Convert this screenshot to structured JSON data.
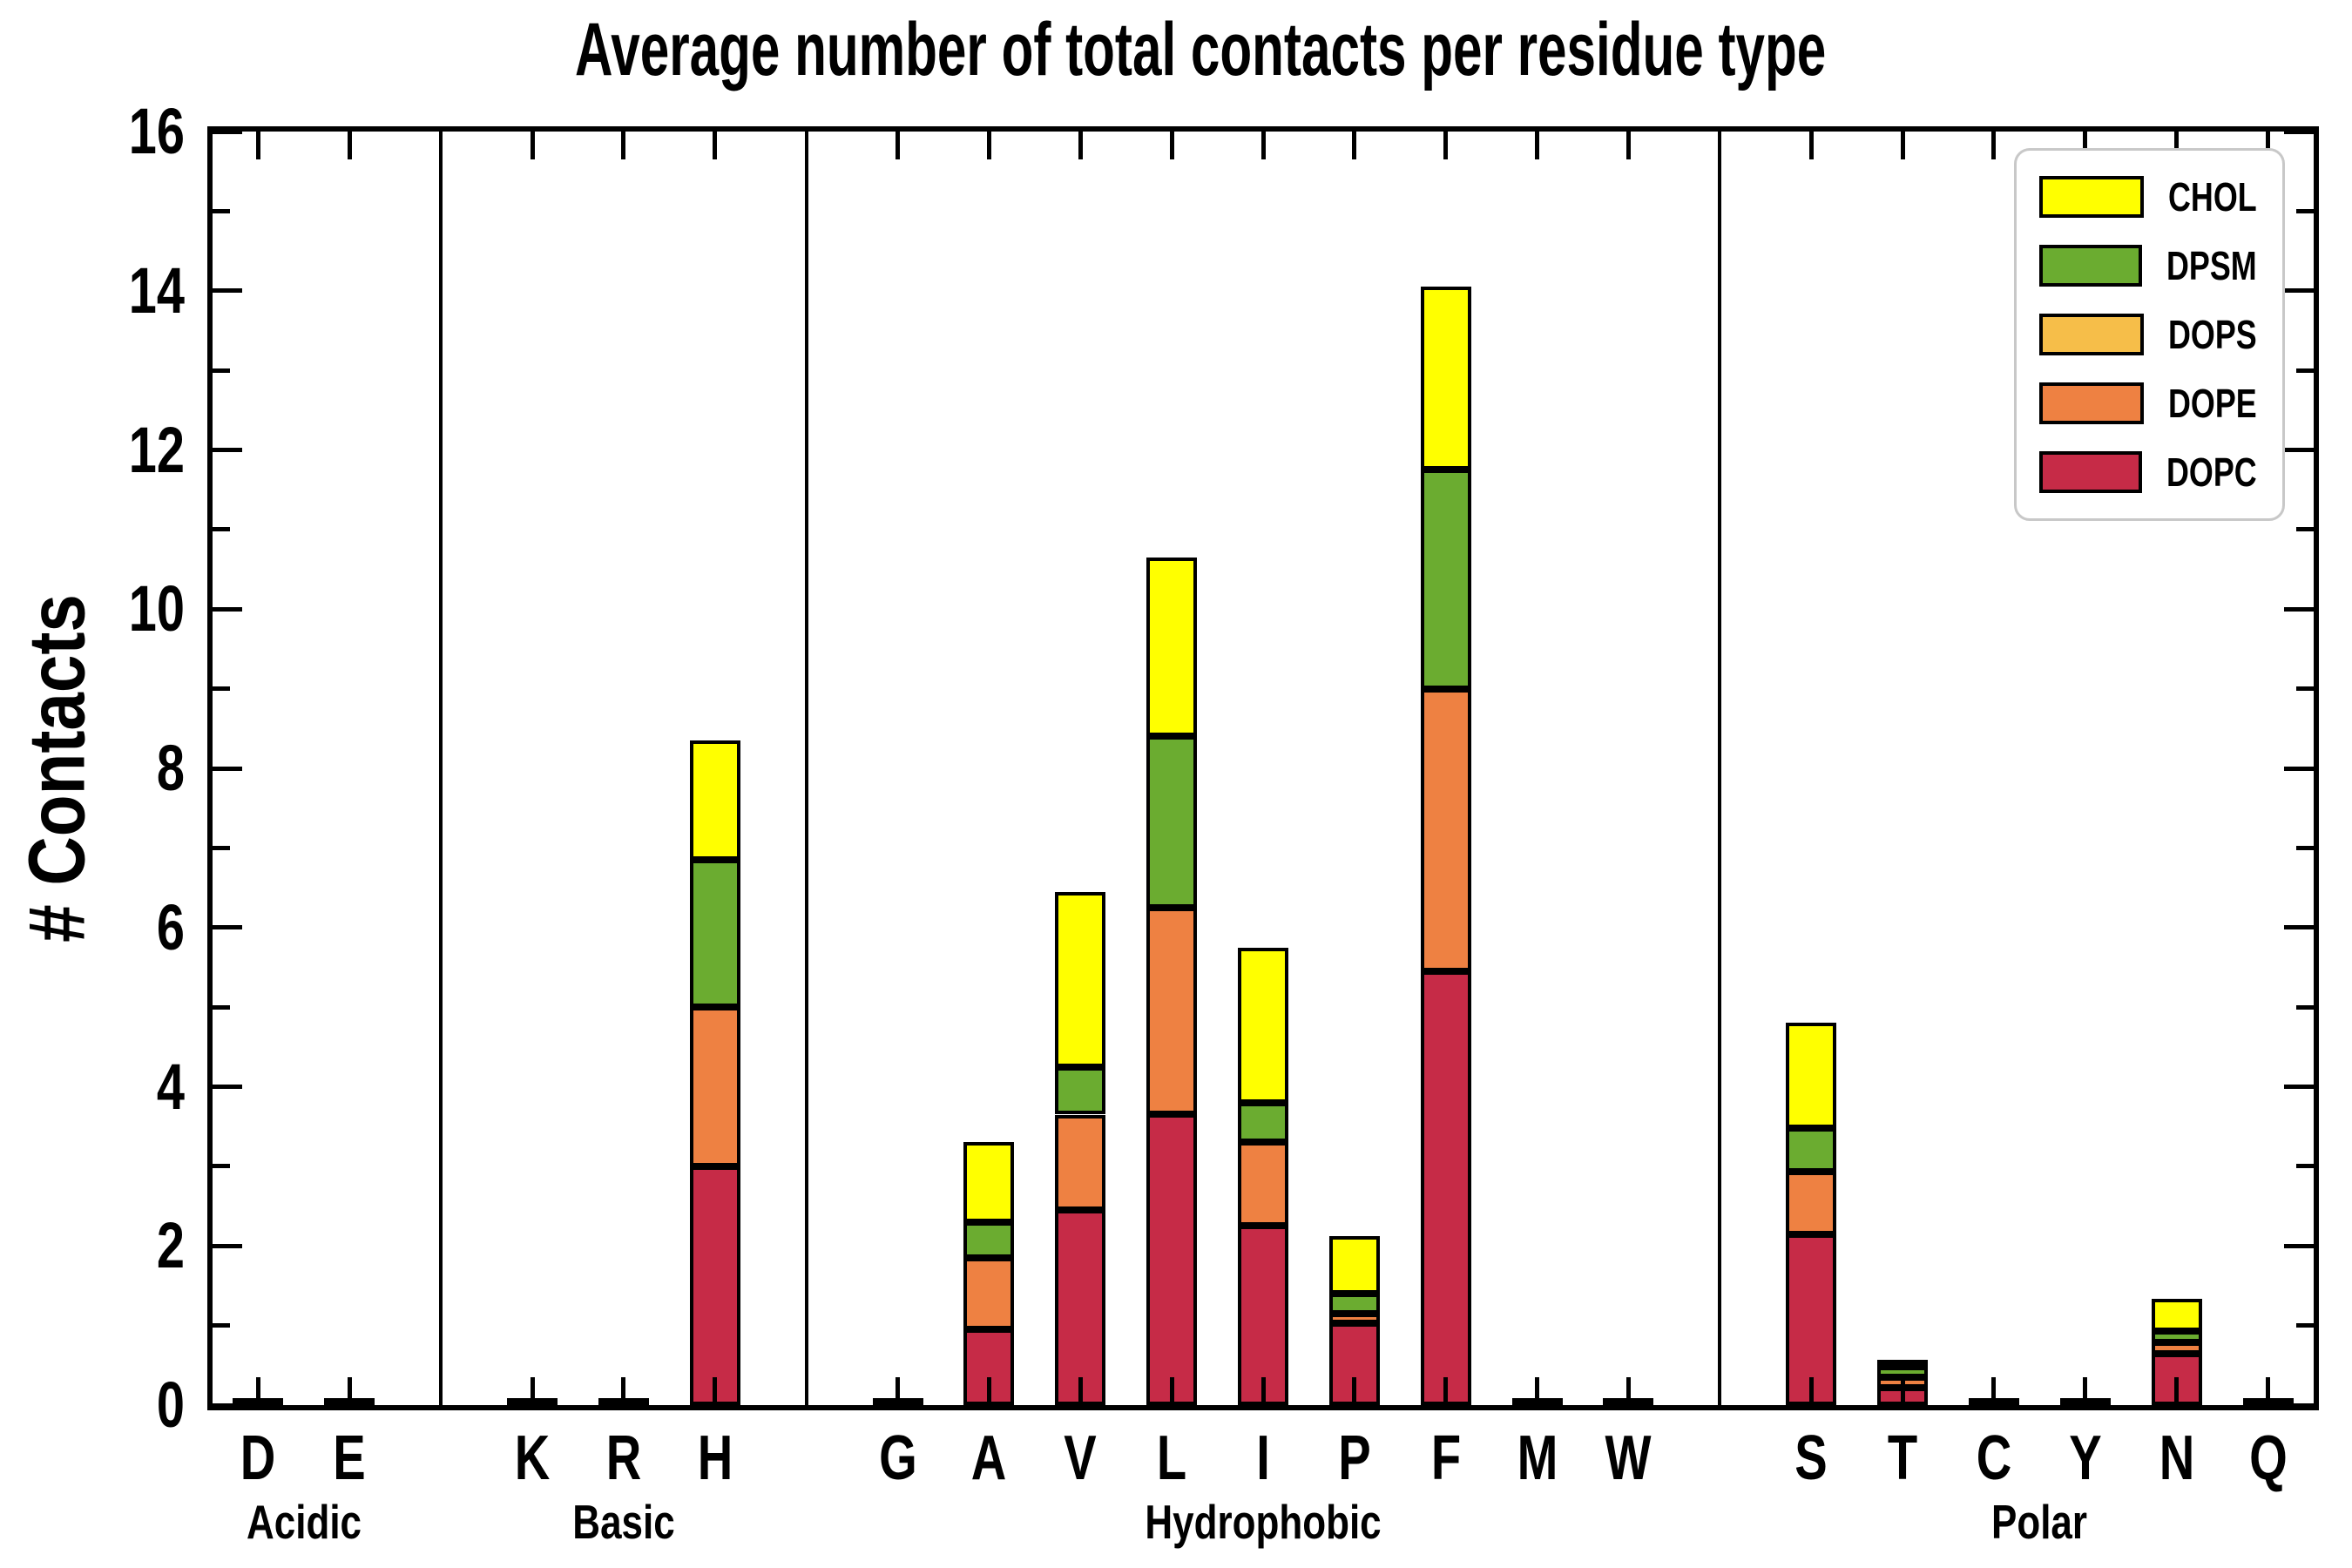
{
  "title": "Average number of total contacts per residue type",
  "ylabel": "# Contacts",
  "colors": {
    "CHOL": "#FFFF00",
    "DPSM": "#6BAC30",
    "DOPS": "#F6BE49",
    "DOPE": "#EE8142",
    "DOPC": "#C62B47",
    "axis": "#000000",
    "legend_border": "#C8C8C8"
  },
  "legend": {
    "position": "upper right",
    "items": [
      {
        "label": "CHOL",
        "color": "#FFFF00"
      },
      {
        "label": "DPSM",
        "color": "#6BAC30"
      },
      {
        "label": "DOPS",
        "color": "#F6BE49"
      },
      {
        "label": "DOPE",
        "color": "#EE8142"
      },
      {
        "label": "DOPC",
        "color": "#C62B47"
      }
    ]
  },
  "chart_data": {
    "type": "bar",
    "stacked": true,
    "title": "Average number of total contacts per residue type",
    "xlabel": "",
    "ylabel": "# Contacts",
    "ylim": [
      0,
      16
    ],
    "yticks_major": [
      0,
      2,
      4,
      6,
      8,
      10,
      12,
      14,
      16
    ],
    "yticks_minor_step": 1,
    "grid": false,
    "legend_position": "upper right",
    "categories": [
      "D",
      "E",
      "K",
      "R",
      "H",
      "G",
      "A",
      "V",
      "L",
      "I",
      "P",
      "F",
      "M",
      "W",
      "S",
      "T",
      "C",
      "Y",
      "N",
      "Q"
    ],
    "groups": [
      {
        "label": "Acidic",
        "residues": [
          "D",
          "E"
        ]
      },
      {
        "label": "Basic",
        "residues": [
          "K",
          "R",
          "H"
        ]
      },
      {
        "label": "Hydrophobic",
        "residues": [
          "G",
          "A",
          "V",
          "L",
          "I",
          "P",
          "F",
          "M",
          "W"
        ]
      },
      {
        "label": "Polar",
        "residues": [
          "S",
          "T",
          "C",
          "Y",
          "N",
          "Q"
        ]
      }
    ],
    "stack_order_bottom_to_top": [
      "DOPC",
      "DOPE",
      "DOPS",
      "DPSM",
      "CHOL"
    ],
    "series": [
      {
        "name": "DOPC",
        "color": "#C62B47",
        "values": [
          0.02,
          0.02,
          0.03,
          0.03,
          3.0,
          0.02,
          0.95,
          2.45,
          3.65,
          2.25,
          1.03,
          5.45,
          0.02,
          0.02,
          2.15,
          0.22,
          0.02,
          0.02,
          0.65,
          0.02
        ]
      },
      {
        "name": "DOPE",
        "color": "#EE8142",
        "values": [
          0,
          0,
          0,
          0,
          2.0,
          0,
          0.9,
          1.2,
          2.6,
          1.05,
          0.12,
          3.55,
          0,
          0,
          0.78,
          0.13,
          0,
          0,
          0.14,
          0
        ]
      },
      {
        "name": "DOPS",
        "color": "#F6BE49",
        "values": [
          0,
          0,
          0,
          0,
          0,
          0,
          0,
          0,
          0,
          0,
          0,
          0,
          0,
          0,
          0,
          0,
          0,
          0,
          0,
          0
        ]
      },
      {
        "name": "DPSM",
        "color": "#6BAC30",
        "values": [
          0,
          0,
          0,
          0,
          1.85,
          0,
          0.45,
          0.6,
          2.15,
          0.5,
          0.25,
          2.75,
          0,
          0,
          0.55,
          0.13,
          0,
          0,
          0.14,
          0
        ]
      },
      {
        "name": "CHOL",
        "color": "#FFFF00",
        "values": [
          0,
          0,
          0,
          0,
          1.5,
          0,
          1.0,
          2.2,
          2.25,
          1.95,
          0.72,
          2.3,
          0,
          0,
          1.33,
          0.04,
          0,
          0,
          0.41,
          0
        ]
      }
    ],
    "totals": {
      "D": 0.02,
      "E": 0.02,
      "K": 0.03,
      "R": 0.03,
      "H": 8.35,
      "G": 0.02,
      "A": 3.3,
      "V": 6.45,
      "L": 10.65,
      "I": 5.75,
      "P": 2.12,
      "F": 14.05,
      "M": 0.02,
      "W": 0.02,
      "S": 4.81,
      "T": 0.52,
      "C": 0.02,
      "Y": 0.02,
      "N": 1.34,
      "Q": 0.02
    }
  }
}
